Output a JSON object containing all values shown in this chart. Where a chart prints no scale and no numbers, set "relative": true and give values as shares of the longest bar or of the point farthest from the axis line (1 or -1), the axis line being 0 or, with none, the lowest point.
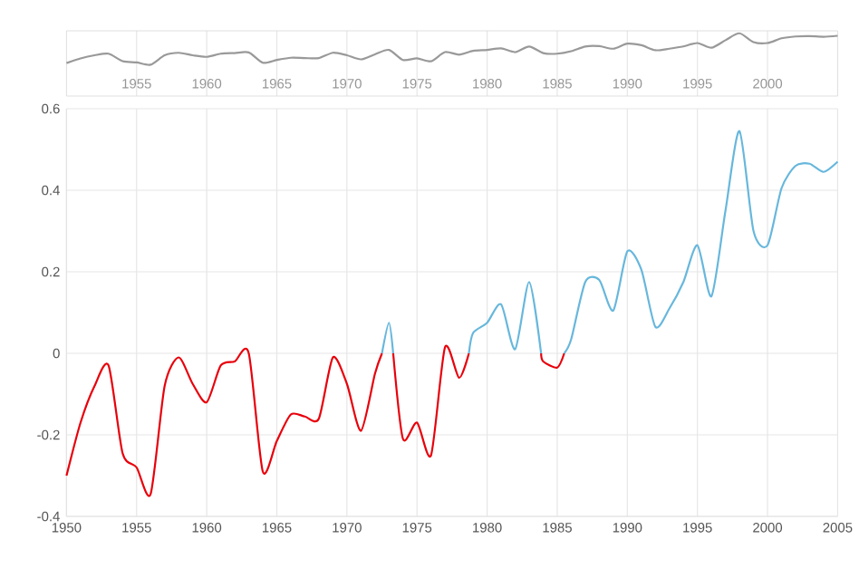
{
  "chart_data": [
    {
      "type": "line",
      "relative": true,
      "x": [
        1950,
        1951,
        1952,
        1953,
        1954,
        1955,
        1956,
        1957,
        1958,
        1959,
        1960,
        1961,
        1962,
        1963,
        1964,
        1965,
        1966,
        1967,
        1968,
        1969,
        1970,
        1971,
        1972,
        1973,
        1974,
        1975,
        1976,
        1977,
        1978,
        1979,
        1980,
        1981,
        1982,
        1983,
        1984,
        1985,
        1986,
        1987,
        1988,
        1989,
        1990,
        1991,
        1992,
        1993,
        1994,
        1995,
        1996,
        1997,
        1998,
        1999,
        2000,
        2001,
        2002,
        2003,
        2004,
        2005
      ],
      "xlim": [
        1950,
        2005
      ],
      "xticks": [
        1955,
        1960,
        1965,
        1970,
        1975,
        1980,
        1985,
        1990,
        1995,
        2000
      ],
      "tick_labels": "x",
      "grid": "x",
      "series": [
        {
          "color": "#999999",
          "values": [
            0.05,
            0.2,
            0.3,
            0.35,
            0.11,
            0.07,
            0,
            0.3,
            0.38,
            0.3,
            0.25,
            0.35,
            0.37,
            0.39,
            0.06,
            0.15,
            0.22,
            0.21,
            0.21,
            0.38,
            0.3,
            0.17,
            0.33,
            0.47,
            0.15,
            0.2,
            0.11,
            0.4,
            0.32,
            0.44,
            0.47,
            0.52,
            0.4,
            0.58,
            0.37,
            0.35,
            0.43,
            0.58,
            0.59,
            0.51,
            0.67,
            0.62,
            0.46,
            0.51,
            0.58,
            0.69,
            0.54,
            0.78,
            1,
            0.72,
            0.69,
            0.84,
            0.9,
            0.91,
            0.89,
            0.92
          ]
        }
      ]
    },
    {
      "type": "line",
      "xlim": [
        1950,
        2005
      ],
      "xticks": [
        1950,
        1955,
        1960,
        1965,
        1970,
        1975,
        1980,
        1985,
        1990,
        1995,
        2000,
        2005
      ],
      "ylim": [
        -0.4,
        0.6
      ],
      "yticks": [
        -0.4,
        -0.2,
        0,
        0.2,
        0.4,
        0.6
      ],
      "grid": true,
      "series": [
        {
          "color": "#e8000b",
          "x": [
            1950,
            1951,
            1952,
            1953,
            1954,
            1955,
            1956,
            1957,
            1958,
            1959,
            1960,
            1961,
            1962,
            1963,
            1964,
            1965,
            1966,
            1967,
            1968,
            1969,
            1970,
            1971,
            1972,
            1972.5,
            1973,
            1973.3,
            1974,
            1975,
            1976,
            1977,
            1978,
            1978.7,
            1980,
            1983.85,
            1984,
            1985,
            1985.5
          ],
          "values": [
            -0.3,
            -0.17,
            -0.08,
            -0.03,
            -0.245,
            -0.28,
            -0.345,
            -0.08,
            -0.01,
            -0.075,
            -0.12,
            -0.03,
            -0.02,
            0,
            -0.29,
            -0.215,
            -0.15,
            -0.155,
            -0.16,
            -0.01,
            -0.075,
            -0.19,
            -0.05,
            0,
            null,
            0,
            -0.21,
            -0.17,
            -0.25,
            0.015,
            -0.06,
            0,
            null,
            0,
            -0.02,
            -0.035,
            0
          ]
        },
        {
          "color": "#67b7dc",
          "x": [
            1972.5,
            1973,
            1973.3,
            1975,
            1978.7,
            1979,
            1980,
            1981,
            1982,
            1983,
            1983.85,
            1984,
            1985.5,
            1986,
            1987,
            1988,
            1989,
            1990,
            1991,
            1992,
            1993,
            1994,
            1995,
            1996,
            1997,
            1998,
            1999,
            2000,
            2001,
            2002,
            2003,
            2004,
            2005
          ],
          "values": [
            0,
            0.075,
            0,
            null,
            0,
            0.05,
            0.075,
            0.12,
            0.01,
            0.175,
            0,
            null,
            0,
            0.035,
            0.175,
            0.18,
            0.105,
            0.25,
            0.205,
            0.065,
            0.11,
            0.175,
            0.265,
            0.14,
            0.35,
            0.545,
            0.3,
            0.265,
            0.405,
            0.46,
            0.465,
            0.445,
            0.47
          ]
        }
      ]
    }
  ]
}
